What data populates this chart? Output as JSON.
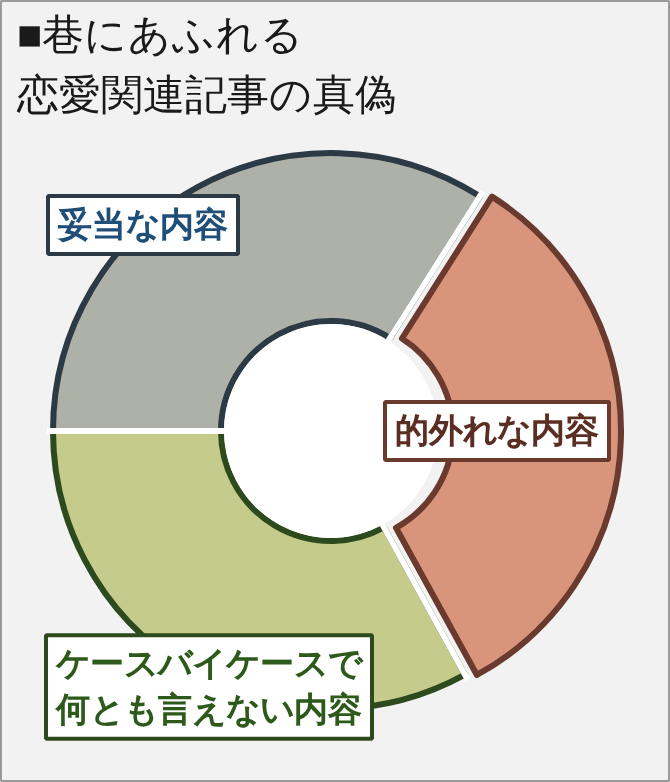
{
  "chart_data": {
    "type": "donut",
    "title": "■巷にあふれる恋愛関連記事の真偽",
    "categories": [
      "妥当な内容",
      "的外れな内容",
      "ケースバイケースで何とも言えない内容"
    ],
    "values": [
      34,
      33,
      33
    ],
    "colors": [
      "#aeb1a8",
      "#d8957c",
      "#c5cb8a"
    ]
  }
}
